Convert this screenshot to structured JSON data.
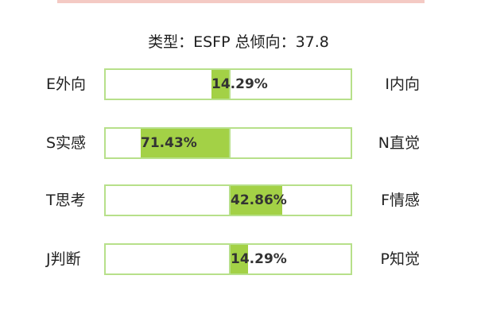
{
  "chart_data": {
    "type": "bar",
    "title": "类型：ESFP 总倾向：37.8",
    "xlim": [
      -100,
      100
    ],
    "rows": [
      {
        "left_label": "E外向",
        "right_label": "I内向",
        "value": 14.29,
        "value_label": "14.29%",
        "side": "left"
      },
      {
        "left_label": "S实感",
        "right_label": "N直觉",
        "value": 71.43,
        "value_label": "71.43%",
        "side": "left"
      },
      {
        "left_label": "T思考",
        "right_label": "F情感",
        "value": 42.86,
        "value_label": "42.86%",
        "side": "right"
      },
      {
        "left_label": "J判断",
        "right_label": "P知觉",
        "value": 14.29,
        "value_label": "14.29%",
        "side": "right"
      }
    ]
  },
  "colors": {
    "fill": "#a3d146",
    "border": "#b7e08a",
    "accent_top": "#f0b8b0"
  }
}
